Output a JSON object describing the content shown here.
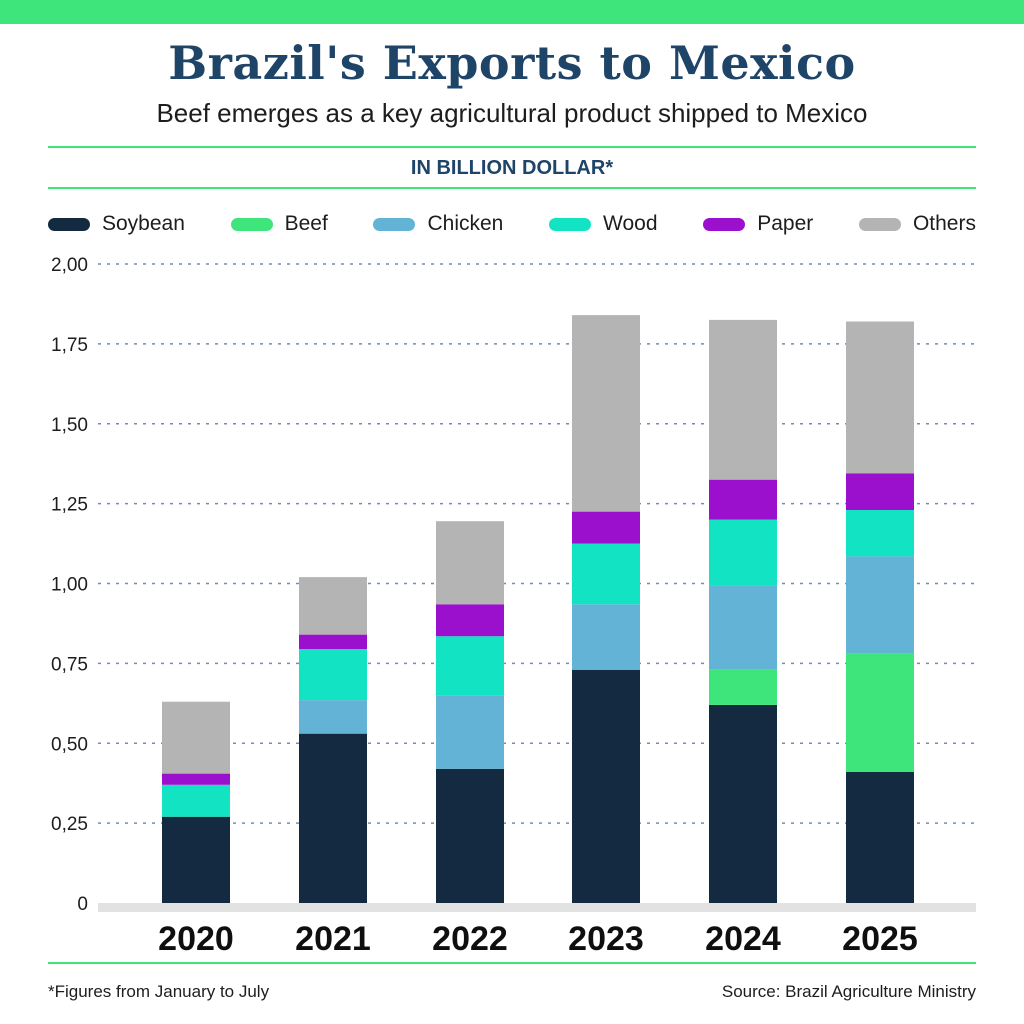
{
  "header": {
    "title": "Brazil's Exports to Mexico",
    "subtitle": "Beef emerges as a key agricultural product shipped to Mexico",
    "unit_label": "IN BILLION DOLLAR*"
  },
  "footer": {
    "footnote": "*Figures from January to July",
    "source": "Source: Brazil Agriculture Ministry"
  },
  "colors": {
    "accent": "#3ee57b",
    "Soybean": "#132a40",
    "Beef": "#3ee57b",
    "Chicken": "#62b3d6",
    "Wood": "#12e3c2",
    "Paper": "#9b10cd",
    "Others": "#b4b4b4",
    "grid": "#6f8fb0",
    "baseline": "#e2e2e2"
  },
  "chart_data": {
    "type": "bar",
    "stacked": true,
    "title": "Brazil's Exports to Mexico",
    "ylabel": "Billion dollars",
    "xlabel": "",
    "categories": [
      "2020",
      "2021",
      "2022",
      "2023",
      "2024",
      "2025"
    ],
    "ylim": [
      0,
      2.0
    ],
    "yticks": [
      0,
      0.25,
      0.5,
      0.75,
      1.0,
      1.25,
      1.5,
      1.75,
      2.0
    ],
    "ytick_labels": [
      "0",
      "0,25",
      "0,50",
      "0,75",
      "1,00",
      "1,25",
      "1,50",
      "1,75",
      "2,00"
    ],
    "grid": true,
    "legend_position": "top",
    "series": [
      {
        "name": "Soybean",
        "values": [
          0.27,
          0.53,
          0.42,
          0.73,
          0.62,
          0.41
        ]
      },
      {
        "name": "Beef",
        "values": [
          0.0,
          0.0,
          0.0,
          0.0,
          0.11,
          0.37
        ]
      },
      {
        "name": "Chicken",
        "values": [
          0.0,
          0.105,
          0.23,
          0.205,
          0.265,
          0.305
        ]
      },
      {
        "name": "Wood",
        "values": [
          0.1,
          0.16,
          0.185,
          0.19,
          0.205,
          0.145
        ]
      },
      {
        "name": "Paper",
        "values": [
          0.035,
          0.045,
          0.1,
          0.1,
          0.125,
          0.115
        ]
      },
      {
        "name": "Others",
        "values": [
          0.225,
          0.18,
          0.26,
          0.615,
          0.5,
          0.475
        ]
      }
    ]
  }
}
